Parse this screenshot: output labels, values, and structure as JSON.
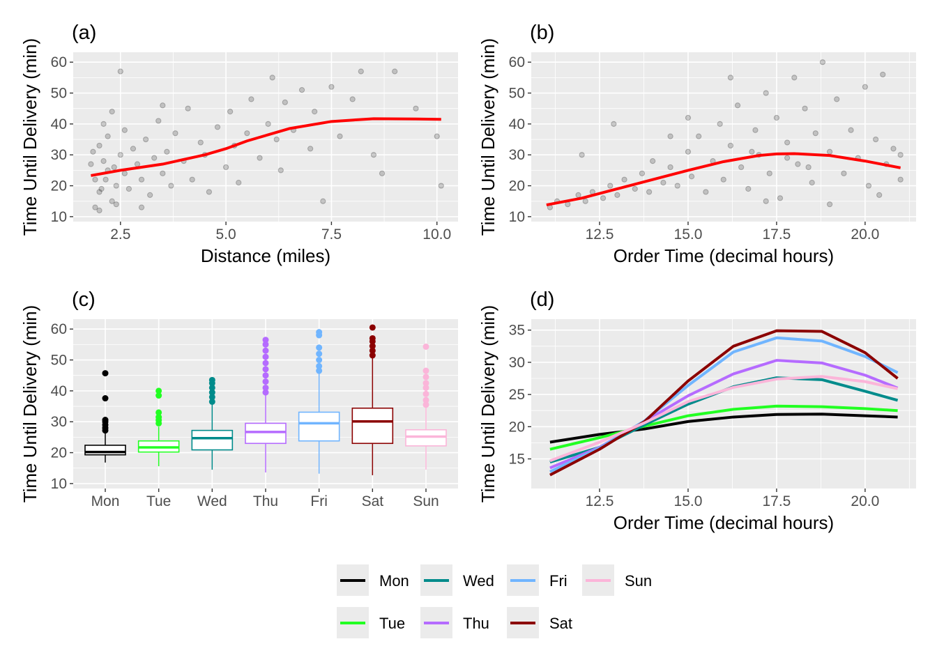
{
  "colors": {
    "panel_bg": "#EBEBEB",
    "grid": "#FFFFFF",
    "smooth": "#FF0000",
    "point": "#000000"
  },
  "chart_data": [
    {
      "panel": "(a)",
      "type": "scatter",
      "xlabel": "Distance (miles)",
      "ylabel": "Time Until Delivery (min)",
      "xlim": [
        1.38,
        10.5
      ],
      "ylim": [
        8.4,
        63.2
      ],
      "xticks": [
        2.5,
        5.0,
        7.5,
        10.0
      ],
      "xtick_labels": [
        "2.5",
        "5.0",
        "7.5",
        "10.0"
      ],
      "yticks": [
        10,
        20,
        30,
        40,
        50,
        60
      ],
      "ytick_labels": [
        "10",
        "20",
        "30",
        "40",
        "50",
        "60"
      ],
      "grid": true,
      "points": [
        [
          1.9,
          22
        ],
        [
          2.0,
          18
        ],
        [
          2.1,
          28
        ],
        [
          2.2,
          25
        ],
        [
          2.0,
          33
        ],
        [
          2.3,
          15
        ],
        [
          2.4,
          20
        ],
        [
          2.5,
          30
        ],
        [
          2.2,
          36
        ],
        [
          1.9,
          13
        ],
        [
          2.6,
          24
        ],
        [
          2.7,
          19
        ],
        [
          2.8,
          32
        ],
        [
          2.1,
          40
        ],
        [
          2.3,
          44
        ],
        [
          2.5,
          57
        ],
        [
          2.9,
          27
        ],
        [
          3.0,
          22
        ],
        [
          3.1,
          35
        ],
        [
          3.2,
          17
        ],
        [
          3.3,
          29
        ],
        [
          3.4,
          41
        ],
        [
          3.5,
          24
        ],
        [
          3.6,
          31
        ],
        [
          3.7,
          20
        ],
        [
          3.8,
          37
        ],
        [
          4.0,
          28
        ],
        [
          4.1,
          45
        ],
        [
          4.2,
          22
        ],
        [
          4.4,
          34
        ],
        [
          4.5,
          30
        ],
        [
          4.6,
          18
        ],
        [
          4.8,
          39
        ],
        [
          5.0,
          26
        ],
        [
          5.1,
          44
        ],
        [
          5.2,
          33
        ],
        [
          5.3,
          21
        ],
        [
          5.5,
          37
        ],
        [
          5.6,
          48
        ],
        [
          5.8,
          29
        ],
        [
          6.0,
          40
        ],
        [
          6.1,
          55
        ],
        [
          6.2,
          35
        ],
        [
          6.3,
          25
        ],
        [
          6.4,
          47
        ],
        [
          6.6,
          38
        ],
        [
          6.8,
          51
        ],
        [
          7.0,
          32
        ],
        [
          7.1,
          44
        ],
        [
          7.3,
          15
        ],
        [
          7.5,
          52
        ],
        [
          7.7,
          36
        ],
        [
          8.0,
          48
        ],
        [
          8.2,
          57
        ],
        [
          8.5,
          30
        ],
        [
          8.7,
          24
        ],
        [
          9.0,
          57
        ],
        [
          9.5,
          45
        ],
        [
          10.0,
          36
        ],
        [
          10.1,
          20
        ],
        [
          2.0,
          12
        ],
        [
          2.4,
          14
        ],
        [
          1.8,
          27
        ],
        [
          2.6,
          38
        ],
        [
          3.0,
          13
        ],
        [
          3.5,
          46
        ],
        [
          1.85,
          31
        ],
        [
          2.15,
          22
        ],
        [
          2.35,
          26
        ],
        [
          2.05,
          19
        ]
      ],
      "smooth": [
        [
          1.8,
          23.3
        ],
        [
          2.5,
          25
        ],
        [
          3.5,
          27
        ],
        [
          4.5,
          30
        ],
        [
          5.0,
          32
        ],
        [
          5.5,
          34.5
        ],
        [
          6.5,
          38.5
        ],
        [
          7.5,
          40.8
        ],
        [
          8.5,
          41.7
        ],
        [
          9.5,
          41.6
        ],
        [
          10.1,
          41.5
        ]
      ]
    },
    {
      "panel": "(b)",
      "type": "scatter",
      "xlabel": "Order Time (decimal hours)",
      "ylabel": "Time Until Delivery (min)",
      "xlim": [
        10.57,
        21.44
      ],
      "ylim": [
        8.4,
        63.2
      ],
      "xticks": [
        12.5,
        15.0,
        17.5,
        20.0
      ],
      "xtick_labels": [
        "12.5",
        "15.0",
        "17.5",
        "20.0"
      ],
      "yticks": [
        10,
        20,
        30,
        40,
        50,
        60
      ],
      "ytick_labels": [
        "10",
        "20",
        "30",
        "40",
        "50",
        "60"
      ],
      "grid": true,
      "points": [
        [
          11.1,
          13
        ],
        [
          11.3,
          15
        ],
        [
          11.6,
          14
        ],
        [
          11.9,
          17
        ],
        [
          12.1,
          15
        ],
        [
          12.3,
          18
        ],
        [
          12.6,
          16
        ],
        [
          12.8,
          20
        ],
        [
          13.0,
          17
        ],
        [
          13.2,
          22
        ],
        [
          13.5,
          19
        ],
        [
          13.7,
          24
        ],
        [
          13.9,
          18
        ],
        [
          14.0,
          28
        ],
        [
          14.3,
          21
        ],
        [
          14.5,
          26
        ],
        [
          14.7,
          20
        ],
        [
          15.0,
          31
        ],
        [
          15.1,
          23
        ],
        [
          15.3,
          36
        ],
        [
          15.5,
          18
        ],
        [
          15.7,
          28
        ],
        [
          15.9,
          40
        ],
        [
          16.0,
          22
        ],
        [
          16.2,
          33
        ],
        [
          16.4,
          46
        ],
        [
          16.5,
          26
        ],
        [
          16.7,
          19
        ],
        [
          16.9,
          38
        ],
        [
          17.0,
          30
        ],
        [
          17.2,
          50
        ],
        [
          17.3,
          24
        ],
        [
          17.5,
          42
        ],
        [
          17.6,
          16
        ],
        [
          17.8,
          34
        ],
        [
          18.0,
          55
        ],
        [
          18.1,
          27
        ],
        [
          18.3,
          45
        ],
        [
          18.5,
          21
        ],
        [
          18.6,
          37
        ],
        [
          18.8,
          60
        ],
        [
          19.0,
          31
        ],
        [
          19.2,
          48
        ],
        [
          19.4,
          24
        ],
        [
          19.6,
          38
        ],
        [
          19.8,
          29
        ],
        [
          20.0,
          52
        ],
        [
          20.1,
          20
        ],
        [
          20.3,
          35
        ],
        [
          20.5,
          56
        ],
        [
          20.6,
          27
        ],
        [
          20.8,
          32
        ],
        [
          21.0,
          22
        ],
        [
          21.0,
          30
        ],
        [
          12.0,
          30
        ],
        [
          12.9,
          40
        ],
        [
          14.5,
          36
        ],
        [
          15.0,
          42
        ],
        [
          16.2,
          55
        ],
        [
          17.2,
          15
        ],
        [
          19.0,
          14
        ],
        [
          20.4,
          17
        ],
        [
          18.4,
          26
        ],
        [
          17.8,
          29
        ],
        [
          16.8,
          31
        ]
      ],
      "smooth": [
        [
          11,
          13.8
        ],
        [
          12,
          16
        ],
        [
          13,
          19
        ],
        [
          14,
          22
        ],
        [
          15,
          25
        ],
        [
          16,
          27.8
        ],
        [
          17,
          29.8
        ],
        [
          17.5,
          30.3
        ],
        [
          18,
          30.4
        ],
        [
          19,
          29.8
        ],
        [
          20,
          28
        ],
        [
          21,
          25.8
        ]
      ]
    },
    {
      "panel": "(c)",
      "type": "box",
      "xlabel": "",
      "ylabel": "Time Until Delivery (min)",
      "ylim": [
        8.4,
        63.2
      ],
      "yticks": [
        10,
        20,
        30,
        40,
        50,
        60
      ],
      "ytick_labels": [
        "10",
        "20",
        "30",
        "40",
        "50",
        "60"
      ],
      "grid": true,
      "categories": [
        "Mon",
        "Tue",
        "Wed",
        "Thu",
        "Fri",
        "Sat",
        "Sun"
      ],
      "boxes": [
        {
          "day": "Mon",
          "color": "#000000",
          "min": 16.8,
          "q1": 19.3,
          "median": 20.2,
          "q3": 22.4,
          "max": 26.5,
          "outliers": [
            27.2,
            28,
            29,
            30,
            30.6,
            37.6,
            45.7
          ]
        },
        {
          "day": "Tue",
          "color": "#22FF22",
          "min": 15.6,
          "q1": 20.2,
          "median": 21.7,
          "q3": 23.8,
          "max": 28.4,
          "outliers": [
            29.5,
            30.5,
            31.5,
            33,
            38.5,
            40
          ]
        },
        {
          "day": "Wed",
          "color": "#008B8B",
          "min": 14.5,
          "q1": 20.9,
          "median": 24.7,
          "q3": 27.2,
          "max": 35.8,
          "outliers": [
            36.5,
            38,
            39.5,
            41,
            42.5,
            43.5
          ]
        },
        {
          "day": "Thu",
          "color": "#B56BFF",
          "min": 13.6,
          "q1": 23.0,
          "median": 26.7,
          "q3": 29.5,
          "max": 38.8,
          "outliers": [
            39.5,
            41,
            43,
            45,
            47,
            49,
            51,
            53,
            55,
            56.5
          ]
        },
        {
          "day": "Fri",
          "color": "#70B5FF",
          "min": 13.2,
          "q1": 23.8,
          "median": 29.5,
          "q3": 33.1,
          "max": 46.0,
          "outliers": [
            46.5,
            48,
            50,
            52,
            54,
            58,
            59
          ]
        },
        {
          "day": "Sat",
          "color": "#8B0000",
          "min": 12.7,
          "q1": 23.0,
          "median": 30.1,
          "q3": 34.4,
          "max": 51.0,
          "outliers": [
            51.5,
            53,
            54.5,
            56,
            57,
            60.5
          ]
        },
        {
          "day": "Sun",
          "color": "#FBB5D9",
          "min": 14.5,
          "q1": 22.2,
          "median": 25.2,
          "q3": 27.4,
          "max": 35.1,
          "outliers": [
            35.5,
            37,
            39,
            41,
            42.5,
            44.5,
            46.5,
            54.3
          ]
        }
      ]
    },
    {
      "panel": "(d)",
      "type": "line",
      "xlabel": "Order Time (decimal hours)",
      "ylabel": "Time Until Delivery (min)",
      "xlim": [
        10.57,
        21.44
      ],
      "ylim": [
        10.4,
        36.7
      ],
      "xticks": [
        12.5,
        15.0,
        17.5,
        20.0
      ],
      "xtick_labels": [
        "12.5",
        "15.0",
        "17.5",
        "20.0"
      ],
      "yticks": [
        15,
        20,
        25,
        30,
        35
      ],
      "ytick_labels": [
        "15",
        "20",
        "25",
        "30",
        "35"
      ],
      "grid": true,
      "x": [
        11.1,
        12.5,
        13.77,
        15.0,
        16.28,
        17.5,
        18.78,
        20.0,
        20.92
      ],
      "series": [
        {
          "name": "Mon",
          "color": "#000000",
          "values": [
            17.6,
            18.8,
            19.65,
            20.8,
            21.5,
            21.9,
            21.95,
            21.7,
            21.5
          ]
        },
        {
          "name": "Tue",
          "color": "#22FF22",
          "values": [
            16.5,
            18.3,
            20.1,
            21.7,
            22.7,
            23.2,
            23.1,
            22.8,
            22.5
          ]
        },
        {
          "name": "Wed",
          "color": "#008B8B",
          "values": [
            14.5,
            16.8,
            20.3,
            23.5,
            26.2,
            27.6,
            27.3,
            25.5,
            24.1
          ]
        },
        {
          "name": "Thu",
          "color": "#B56BFF",
          "values": [
            13.6,
            16.8,
            20.8,
            24.8,
            28.2,
            30.3,
            29.9,
            28.0,
            26.0
          ]
        },
        {
          "name": "Fri",
          "color": "#70B5FF",
          "values": [
            13.0,
            16.7,
            20.9,
            26.4,
            31.6,
            33.8,
            33.3,
            30.9,
            28.4
          ]
        },
        {
          "name": "Sat",
          "color": "#8B0000",
          "values": [
            12.5,
            16.5,
            20.8,
            27.1,
            32.5,
            34.9,
            34.8,
            31.5,
            27.5
          ]
        },
        {
          "name": "Sun",
          "color": "#FBB5D9",
          "values": [
            14.7,
            17.6,
            20.6,
            23.9,
            26.1,
            27.4,
            27.8,
            27.0,
            25.9
          ]
        }
      ]
    }
  ],
  "legend": {
    "position": "bottom",
    "items": [
      {
        "label": "Mon",
        "color": "#000000"
      },
      {
        "label": "Tue",
        "color": "#22FF22"
      },
      {
        "label": "Wed",
        "color": "#008B8B"
      },
      {
        "label": "Thu",
        "color": "#B56BFF"
      },
      {
        "label": "Fri",
        "color": "#70B5FF"
      },
      {
        "label": "Sat",
        "color": "#8B0000"
      },
      {
        "label": "Sun",
        "color": "#FBB5D9"
      }
    ]
  }
}
